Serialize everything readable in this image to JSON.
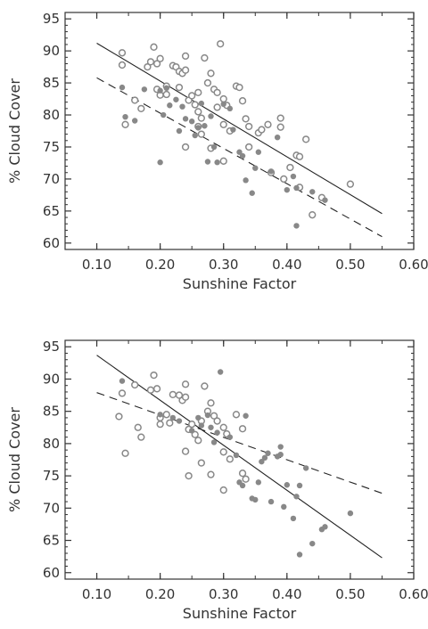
{
  "chart_data": [
    {
      "type": "scatter",
      "title": "",
      "xlabel": "Sunshine Factor",
      "ylabel": "% Cloud Cover",
      "xlim": [
        0.05,
        0.6
      ],
      "ylim": [
        59,
        96
      ],
      "xticks": [
        "0.10",
        "0.20",
        "0.30",
        "0.40",
        "0.50",
        "0.60"
      ],
      "yticks": [
        "60",
        "65",
        "70",
        "75",
        "80",
        "85",
        "90",
        "95"
      ],
      "x_tick_values": [
        0.1,
        0.2,
        0.3,
        0.4,
        0.5,
        0.6
      ],
      "y_tick_values": [
        60,
        65,
        70,
        75,
        80,
        85,
        90,
        95
      ],
      "point_color": "#888888",
      "series": [
        {
          "marker": "open-circle",
          "points": [
            [
              0.14,
              89.7
            ],
            [
              0.14,
              87.8
            ],
            [
              0.145,
              78.5
            ],
            [
              0.16,
              82.3
            ],
            [
              0.17,
              81.0
            ],
            [
              0.18,
              87.5
            ],
            [
              0.185,
              88.3
            ],
            [
              0.19,
              90.6
            ],
            [
              0.195,
              88.0
            ],
            [
              0.195,
              84.0
            ],
            [
              0.2,
              88.8
            ],
            [
              0.2,
              83.1
            ],
            [
              0.21,
              84.5
            ],
            [
              0.21,
              83.2
            ],
            [
              0.22,
              87.7
            ],
            [
              0.225,
              87.5
            ],
            [
              0.23,
              86.8
            ],
            [
              0.23,
              84.3
            ],
            [
              0.235,
              86.5
            ],
            [
              0.24,
              89.2
            ],
            [
              0.24,
              87.0
            ],
            [
              0.245,
              82.3
            ],
            [
              0.25,
              83.0
            ],
            [
              0.255,
              81.6
            ],
            [
              0.26,
              83.5
            ],
            [
              0.26,
              80.5
            ],
            [
              0.265,
              79.5
            ],
            [
              0.265,
              77.0
            ],
            [
              0.27,
              88.9
            ],
            [
              0.275,
              85.0
            ],
            [
              0.28,
              86.5
            ],
            [
              0.285,
              84.0
            ],
            [
              0.29,
              83.5
            ],
            [
              0.29,
              81.2
            ],
            [
              0.295,
              91.1
            ],
            [
              0.3,
              82.5
            ],
            [
              0.3,
              78.5
            ],
            [
              0.305,
              81.5
            ],
            [
              0.31,
              77.5
            ],
            [
              0.32,
              84.5
            ],
            [
              0.325,
              84.3
            ],
            [
              0.33,
              82.2
            ],
            [
              0.335,
              79.4
            ],
            [
              0.34,
              78.2
            ],
            [
              0.34,
              75.0
            ],
            [
              0.355,
              77.2
            ],
            [
              0.36,
              77.7
            ],
            [
              0.37,
              78.5
            ],
            [
              0.375,
              71.0
            ],
            [
              0.39,
              79.5
            ],
            [
              0.39,
              78.1
            ],
            [
              0.395,
              70.0
            ],
            [
              0.405,
              71.8
            ],
            [
              0.415,
              73.7
            ],
            [
              0.42,
              73.5
            ],
            [
              0.42,
              68.7
            ],
            [
              0.43,
              76.2
            ],
            [
              0.44,
              64.4
            ],
            [
              0.455,
              67.1
            ],
            [
              0.5,
              69.2
            ],
            [
              0.3,
              72.8
            ],
            [
              0.28,
              74.8
            ],
            [
              0.24,
              75.0
            ],
            [
              0.26,
              78.2
            ]
          ]
        },
        {
          "marker": "filled-circle",
          "points": [
            [
              0.14,
              84.3
            ],
            [
              0.145,
              79.7
            ],
            [
              0.16,
              79.1
            ],
            [
              0.175,
              84.0
            ],
            [
              0.2,
              72.6
            ],
            [
              0.205,
              80.0
            ],
            [
              0.21,
              84.2
            ],
            [
              0.215,
              81.5
            ],
            [
              0.225,
              82.4
            ],
            [
              0.23,
              77.5
            ],
            [
              0.235,
              81.3
            ],
            [
              0.24,
              79.4
            ],
            [
              0.25,
              79.0
            ],
            [
              0.255,
              76.8
            ],
            [
              0.265,
              81.8
            ],
            [
              0.27,
              78.3
            ],
            [
              0.275,
              72.7
            ],
            [
              0.28,
              79.8
            ],
            [
              0.285,
              75.0
            ],
            [
              0.29,
              72.6
            ],
            [
              0.3,
              81.7
            ],
            [
              0.31,
              81.0
            ],
            [
              0.315,
              77.7
            ],
            [
              0.325,
              74.2
            ],
            [
              0.33,
              73.6
            ],
            [
              0.335,
              69.8
            ],
            [
              0.345,
              67.8
            ],
            [
              0.35,
              71.7
            ],
            [
              0.355,
              74.2
            ],
            [
              0.375,
              71.2
            ],
            [
              0.385,
              76.5
            ],
            [
              0.4,
              68.3
            ],
            [
              0.41,
              70.4
            ],
            [
              0.415,
              68.6
            ],
            [
              0.415,
              62.7
            ],
            [
              0.44,
              68.0
            ],
            [
              0.46,
              66.7
            ],
            [
              0.2,
              83.8
            ],
            [
              0.26,
              78.0
            ]
          ]
        }
      ],
      "fit_lines": [
        {
          "style": "solid",
          "points": [
            [
              0.1,
              91.2
            ],
            [
              0.55,
              64.6
            ]
          ]
        },
        {
          "style": "dashed",
          "points": [
            [
              0.1,
              85.8
            ],
            [
              0.55,
              61.0
            ]
          ]
        }
      ]
    },
    {
      "type": "scatter",
      "title": "",
      "xlabel": "Sunshine Factor",
      "ylabel": "% Cloud Cover",
      "xlim": [
        0.05,
        0.6
      ],
      "ylim": [
        59,
        96
      ],
      "xticks": [
        "0.10",
        "0.20",
        "0.30",
        "0.40",
        "0.50",
        "0.60"
      ],
      "yticks": [
        "60",
        "65",
        "70",
        "75",
        "80",
        "85",
        "90",
        "95"
      ],
      "x_tick_values": [
        0.1,
        0.2,
        0.3,
        0.4,
        0.5,
        0.6
      ],
      "y_tick_values": [
        60,
        65,
        70,
        75,
        80,
        85,
        90,
        95
      ],
      "point_color": "#888888",
      "series": [
        {
          "marker": "open-circle",
          "points": [
            [
              0.135,
              84.2
            ],
            [
              0.14,
              87.8
            ],
            [
              0.145,
              78.5
            ],
            [
              0.16,
              89.1
            ],
            [
              0.165,
              82.5
            ],
            [
              0.17,
              81.0
            ],
            [
              0.185,
              88.3
            ],
            [
              0.19,
              90.6
            ],
            [
              0.195,
              88.5
            ],
            [
              0.2,
              84.0
            ],
            [
              0.2,
              83.0
            ],
            [
              0.21,
              84.5
            ],
            [
              0.215,
              83.2
            ],
            [
              0.22,
              87.6
            ],
            [
              0.23,
              87.5
            ],
            [
              0.235,
              86.7
            ],
            [
              0.24,
              89.2
            ],
            [
              0.24,
              87.2
            ],
            [
              0.24,
              78.8
            ],
            [
              0.245,
              82.2
            ],
            [
              0.25,
              83.0
            ],
            [
              0.255,
              81.4
            ],
            [
              0.26,
              80.5
            ],
            [
              0.265,
              83.5
            ],
            [
              0.265,
              77.0
            ],
            [
              0.27,
              88.9
            ],
            [
              0.275,
              85.0
            ],
            [
              0.28,
              86.3
            ],
            [
              0.285,
              84.3
            ],
            [
              0.29,
              83.5
            ],
            [
              0.3,
              82.5
            ],
            [
              0.3,
              78.7
            ],
            [
              0.305,
              81.5
            ],
            [
              0.31,
              77.6
            ],
            [
              0.32,
              84.5
            ],
            [
              0.33,
              82.3
            ],
            [
              0.33,
              75.4
            ],
            [
              0.335,
              74.5
            ],
            [
              0.28,
              75.2
            ],
            [
              0.245,
              75.0
            ],
            [
              0.3,
              72.8
            ]
          ]
        },
        {
          "marker": "filled-circle",
          "points": [
            [
              0.14,
              89.7
            ],
            [
              0.2,
              84.5
            ],
            [
              0.22,
              84.0
            ],
            [
              0.23,
              83.5
            ],
            [
              0.25,
              82.0
            ],
            [
              0.26,
              84.0
            ],
            [
              0.265,
              82.8
            ],
            [
              0.275,
              84.4
            ],
            [
              0.28,
              82.5
            ],
            [
              0.285,
              80.2
            ],
            [
              0.29,
              81.7
            ],
            [
              0.295,
              91.1
            ],
            [
              0.31,
              81.0
            ],
            [
              0.32,
              78.2
            ],
            [
              0.325,
              74.0
            ],
            [
              0.33,
              73.5
            ],
            [
              0.335,
              84.3
            ],
            [
              0.345,
              71.5
            ],
            [
              0.35,
              71.3
            ],
            [
              0.355,
              74.0
            ],
            [
              0.36,
              77.2
            ],
            [
              0.365,
              77.8
            ],
            [
              0.37,
              78.5
            ],
            [
              0.375,
              71.0
            ],
            [
              0.385,
              78.0
            ],
            [
              0.39,
              79.5
            ],
            [
              0.39,
              78.3
            ],
            [
              0.395,
              70.2
            ],
            [
              0.4,
              73.6
            ],
            [
              0.41,
              68.4
            ],
            [
              0.415,
              71.8
            ],
            [
              0.42,
              73.5
            ],
            [
              0.42,
              62.8
            ],
            [
              0.43,
              76.2
            ],
            [
              0.44,
              64.5
            ],
            [
              0.455,
              66.7
            ],
            [
              0.46,
              67.1
            ],
            [
              0.5,
              69.2
            ]
          ]
        }
      ],
      "fit_lines": [
        {
          "style": "solid",
          "points": [
            [
              0.1,
              93.7
            ],
            [
              0.55,
              62.3
            ]
          ]
        },
        {
          "style": "dashed",
          "points": [
            [
              0.1,
              87.9
            ],
            [
              0.55,
              72.3
            ]
          ]
        }
      ]
    }
  ]
}
